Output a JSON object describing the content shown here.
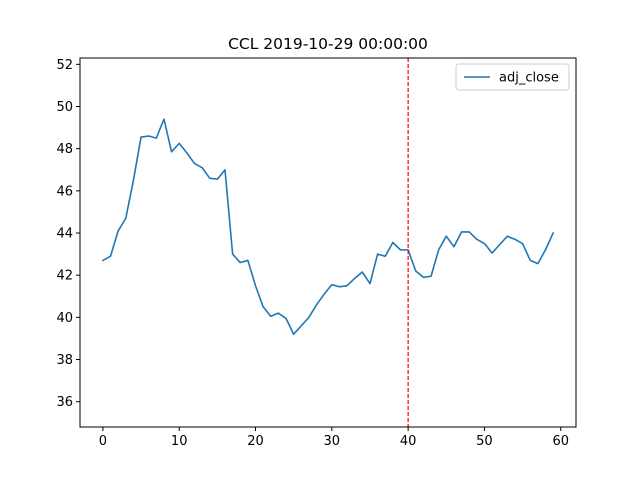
{
  "chart_data": {
    "type": "line",
    "title": "CCL 2019-10-29 00:00:00",
    "xlabel": "",
    "ylabel": "",
    "xlim": [
      -3,
      62
    ],
    "ylim": [
      34.8,
      52.3
    ],
    "xticks": [
      0,
      10,
      20,
      30,
      40,
      50,
      60
    ],
    "yticks": [
      36,
      38,
      40,
      42,
      44,
      46,
      48,
      50,
      52
    ],
    "grid": false,
    "legend_position": "top-right",
    "series": [
      {
        "name": "adj_close",
        "color": "#1f77b4",
        "x": [
          0,
          1,
          2,
          3,
          4,
          5,
          6,
          7,
          8,
          9,
          10,
          11,
          12,
          13,
          14,
          15,
          16,
          17,
          18,
          19,
          20,
          21,
          22,
          23,
          24,
          25,
          26,
          27,
          28,
          29,
          30,
          31,
          32,
          33,
          34,
          35,
          36,
          37,
          38,
          39,
          40,
          41,
          42,
          43,
          44,
          45,
          46,
          47,
          48,
          49,
          50,
          51,
          52,
          53,
          54,
          55,
          56,
          57,
          58,
          59
        ],
        "y": [
          42.7,
          42.9,
          44.1,
          44.7,
          46.5,
          48.55,
          48.6,
          48.5,
          49.4,
          47.85,
          48.25,
          47.8,
          47.3,
          47.1,
          46.6,
          46.55,
          47.0,
          43.0,
          42.6,
          42.7,
          41.5,
          40.5,
          40.05,
          40.2,
          39.95,
          39.2,
          39.6,
          40.0,
          40.6,
          41.1,
          41.55,
          41.45,
          41.5,
          41.85,
          42.15,
          41.6,
          43.0,
          42.9,
          43.55,
          43.2,
          43.2,
          42.2,
          41.9,
          41.95,
          43.2,
          43.85,
          43.35,
          44.05,
          44.05,
          43.7,
          43.5,
          43.05,
          43.45,
          43.85,
          43.7,
          43.5,
          42.7,
          42.55,
          43.2,
          44.0
        ]
      }
    ],
    "reference_lines": [
      {
        "orientation": "vertical",
        "x": 40,
        "color": "#ff0000",
        "style": "dashed"
      }
    ]
  }
}
